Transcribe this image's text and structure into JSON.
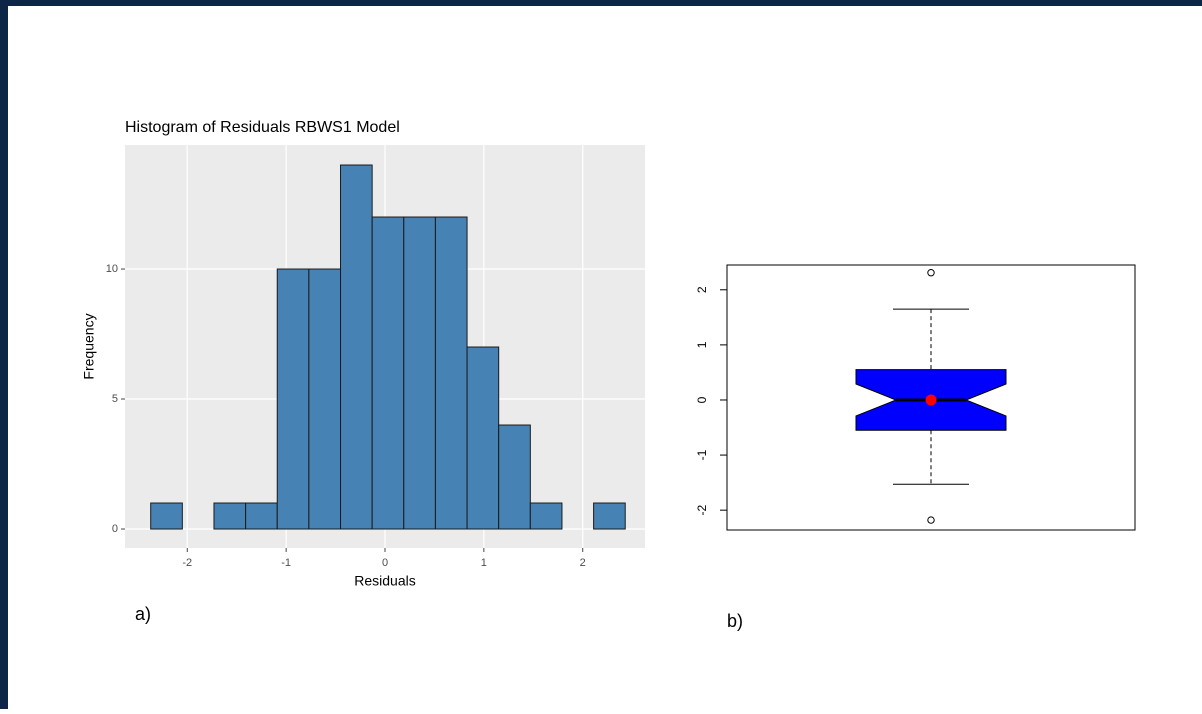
{
  "chart_data": [
    {
      "type": "histogram",
      "title": "Histogram of Residuals RBWS1 Model",
      "x_label": "Residuals",
      "y_label": "Frequency",
      "panel_label": "a)",
      "bins": [
        -2.37,
        -2.05,
        -1.73,
        -1.41,
        -1.09,
        -0.77,
        -0.45,
        -0.13,
        0.19,
        0.51,
        0.83,
        1.15,
        1.47,
        1.79,
        2.11,
        2.43
      ],
      "values": [
        1,
        0,
        1,
        1,
        10,
        10,
        14,
        12,
        12,
        12,
        7,
        4,
        1,
        0,
        1
      ],
      "color": "#4682b4",
      "xlim": [
        -2.63,
        2.63
      ],
      "xticks": [
        -2,
        -1,
        0,
        1,
        2
      ],
      "ylim": [
        -0.73,
        14.77
      ],
      "yticks": [
        0,
        5,
        10
      ],
      "grid": true
    },
    {
      "type": "box",
      "panel_label": "b)",
      "whisker_low": -1.53,
      "q1": -0.55,
      "median": 0,
      "q3": 0.55,
      "whisker_high": 1.65,
      "notch": [
        -0.29,
        0.29
      ],
      "mean": 0,
      "outliers": [
        2.31,
        -2.18
      ],
      "color": "#0000ff",
      "mean_color": "#ff0000",
      "ylim": [
        -2.36,
        2.45
      ],
      "yticks": [
        -2,
        -1,
        0,
        1,
        2
      ]
    }
  ]
}
